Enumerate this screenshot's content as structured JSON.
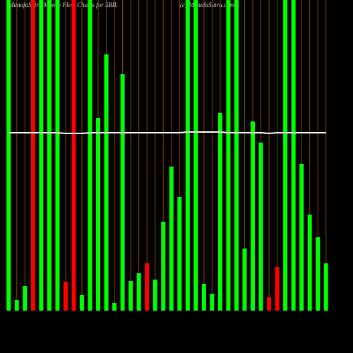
{
  "chart_data": {
    "type": "bar",
    "title": "MunafaSutra Money Flow Charts for SBIL",
    "subtitle": "(c) MunafaSutra.com",
    "categories": [
      null,
      null,
      null,
      null,
      null,
      null,
      null,
      null,
      null,
      null,
      null,
      null,
      null,
      null,
      null,
      null,
      null,
      null,
      null,
      null,
      null,
      null,
      null,
      null,
      null,
      null,
      null,
      null,
      null,
      null,
      null,
      null,
      null,
      null,
      null,
      null,
      null,
      null,
      null,
      null
    ],
    "values": [
      440,
      15,
      35,
      440,
      440,
      440,
      440,
      41,
      440,
      22,
      440,
      273,
      363,
      11,
      335,
      42,
      53,
      67,
      44,
      126,
      204,
      161,
      440,
      440,
      38,
      24,
      280,
      440,
      440,
      88,
      268,
      238,
      19,
      62,
      440,
      440,
      208,
      136,
      104,
      67
    ],
    "colors": [
      "#00ff00",
      "#00ff00",
      "#00ff00",
      "#ff0000",
      "#00ff00",
      "#00ff00",
      "#00ff00",
      "#ff0000",
      "#ff0000",
      "#00ff00",
      "#00ff00",
      "#00ff00",
      "#00ff00",
      "#00ff00",
      "#00ff00",
      "#00ff00",
      "#00ff00",
      "#ff0000",
      "#00ff00",
      "#00ff00",
      "#00ff00",
      "#00ff00",
      "#00ff00",
      "#00ff00",
      "#00ff00",
      "#00ff00",
      "#00ff00",
      "#00ff00",
      "#00ff00",
      "#00ff00",
      "#00ff00",
      "#00ff00",
      "#ff0000",
      "#ff0000",
      "#00ff00",
      "#00ff00",
      "#00ff00",
      "#00ff00",
      "#00ff00",
      "#00ff00"
    ],
    "line": {
      "color": "#ffffff",
      "values": [
        252,
        252,
        252,
        252,
        252,
        252,
        252,
        251,
        251,
        251,
        252,
        252,
        252,
        252,
        252,
        252,
        252,
        252,
        252,
        252,
        252,
        252,
        253,
        253,
        253,
        253,
        253,
        252,
        252,
        252,
        252,
        252,
        251,
        252,
        252,
        252,
        252,
        252,
        252,
        252
      ]
    },
    "ylim": [
      0,
      440
    ],
    "grid_color": "#8b4500"
  }
}
